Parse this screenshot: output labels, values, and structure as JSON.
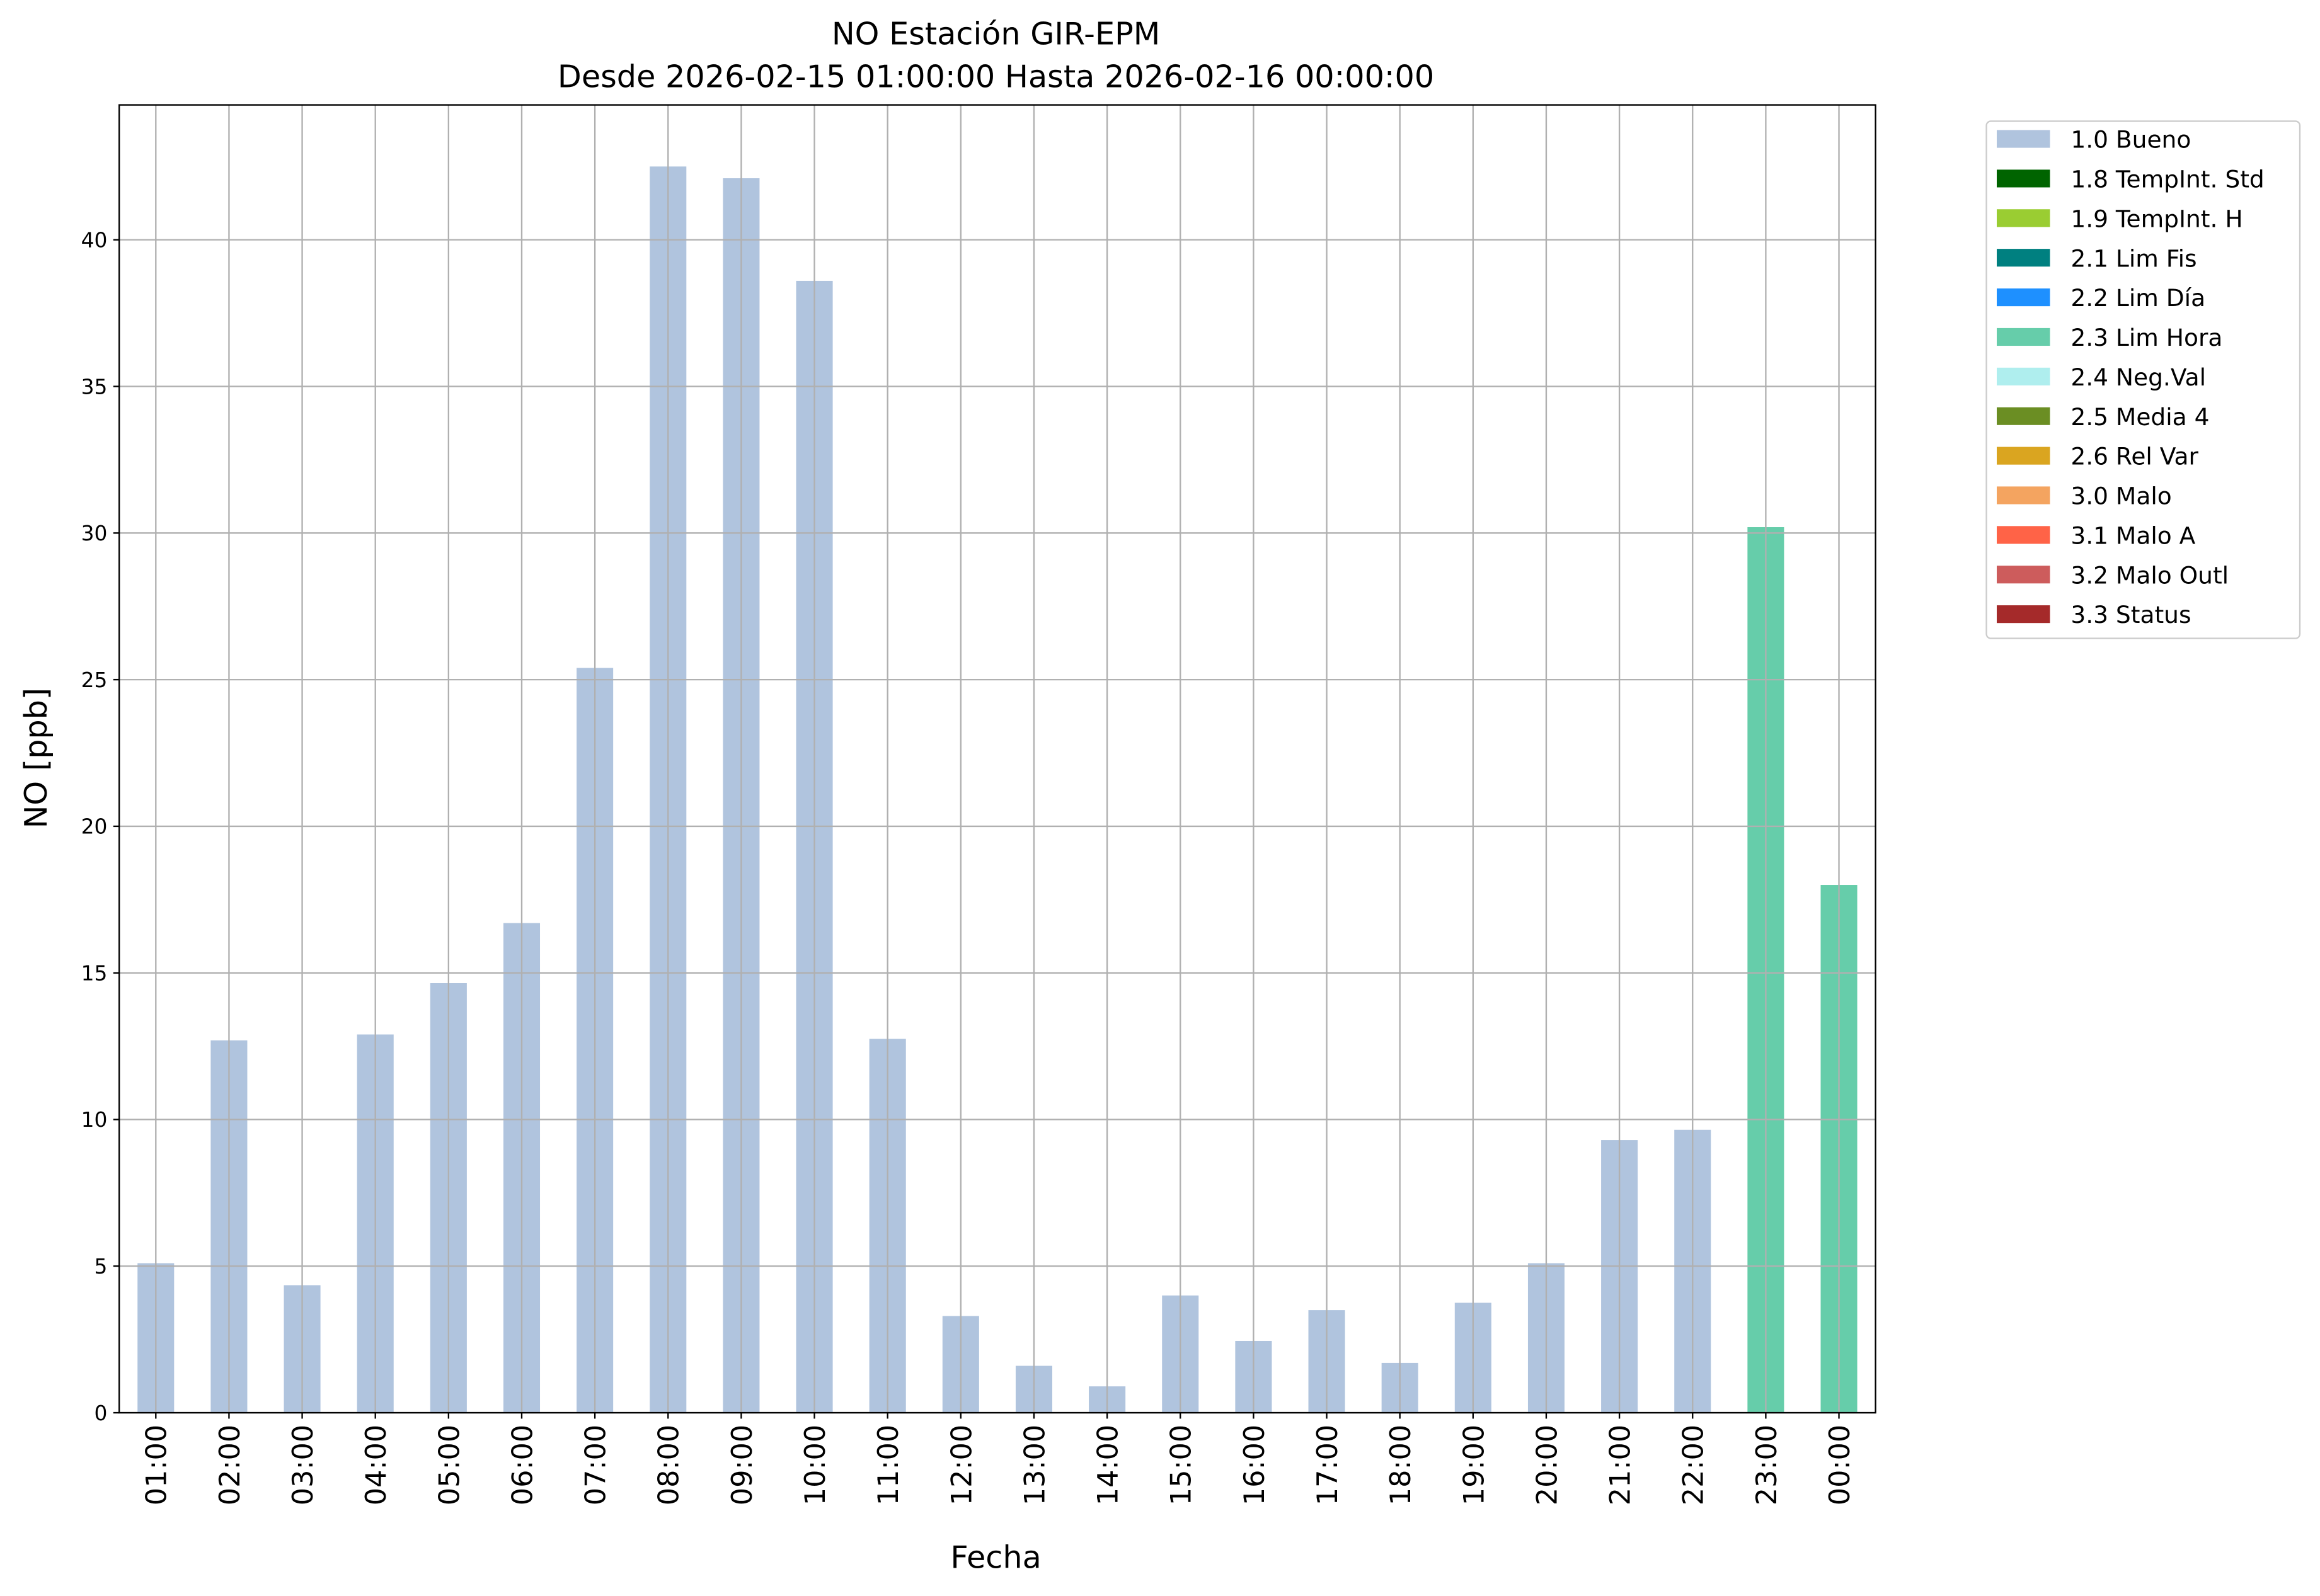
{
  "chart_data": {
    "type": "stacked_bar",
    "title": "NO Estación GIR-EPM",
    "subtitle": "Desde 2026-02-15 01:00:00 Hasta 2026-02-16 00:00:00",
    "xlabel": "Fecha",
    "ylabel": "NO [ppb]",
    "categories": [
      "01:00",
      "02:00",
      "03:00",
      "04:00",
      "05:00",
      "06:00",
      "07:00",
      "08:00",
      "09:00",
      "10:00",
      "11:00",
      "12:00",
      "13:00",
      "14:00",
      "15:00",
      "16:00",
      "17:00",
      "18:00",
      "19:00",
      "20:00",
      "21:00",
      "22:00",
      "23:00",
      "00:00"
    ],
    "series": [
      {
        "name": "1.0 Bueno",
        "color": "#b0c4de",
        "values": [
          5.1,
          12.7,
          4.35,
          12.9,
          14.65,
          16.7,
          25.4,
          42.5,
          42.1,
          38.6,
          12.75,
          3.3,
          1.6,
          0.9,
          4.0,
          2.45,
          3.5,
          1.7,
          3.75,
          5.1,
          9.3,
          9.65,
          null,
          null
        ]
      },
      {
        "name": "1.8 TempInt. Std",
        "color": "#006400",
        "values": [
          null,
          null,
          null,
          null,
          null,
          null,
          null,
          null,
          null,
          null,
          null,
          null,
          null,
          null,
          null,
          null,
          null,
          null,
          null,
          null,
          null,
          null,
          null,
          null
        ]
      },
      {
        "name": "1.9 TempInt. H",
        "color": "#9acd32",
        "values": [
          null,
          null,
          null,
          null,
          null,
          null,
          null,
          null,
          null,
          null,
          null,
          null,
          null,
          null,
          null,
          null,
          null,
          null,
          null,
          null,
          null,
          null,
          null,
          null
        ]
      },
      {
        "name": "2.1 Lim Fis",
        "color": "#008080",
        "values": [
          null,
          null,
          null,
          null,
          null,
          null,
          null,
          null,
          null,
          null,
          null,
          null,
          null,
          null,
          null,
          null,
          null,
          null,
          null,
          null,
          null,
          null,
          null,
          null
        ]
      },
      {
        "name": "2.2 Lim Día",
        "color": "#1e90ff",
        "values": [
          null,
          null,
          null,
          null,
          null,
          null,
          null,
          null,
          null,
          null,
          null,
          null,
          null,
          null,
          null,
          null,
          null,
          null,
          null,
          null,
          null,
          null,
          null,
          null
        ]
      },
      {
        "name": "2.3 Lim Hora",
        "color": "#66cdaa",
        "values": [
          null,
          null,
          null,
          null,
          null,
          null,
          null,
          null,
          null,
          null,
          null,
          null,
          null,
          null,
          null,
          null,
          null,
          null,
          null,
          null,
          null,
          null,
          30.2,
          18.0
        ]
      },
      {
        "name": "2.4 Neg.Val",
        "color": "#afeeee",
        "values": [
          null,
          null,
          null,
          null,
          null,
          null,
          null,
          null,
          null,
          null,
          null,
          null,
          null,
          null,
          null,
          null,
          null,
          null,
          null,
          null,
          null,
          null,
          null,
          null
        ]
      },
      {
        "name": "2.5 Media 4",
        "color": "#6b8e23",
        "values": [
          null,
          null,
          null,
          null,
          null,
          null,
          null,
          null,
          null,
          null,
          null,
          null,
          null,
          null,
          null,
          null,
          null,
          null,
          null,
          null,
          null,
          null,
          null,
          null
        ]
      },
      {
        "name": "2.6 Rel Var",
        "color": "#daa520",
        "values": [
          null,
          null,
          null,
          null,
          null,
          null,
          null,
          null,
          null,
          null,
          null,
          null,
          null,
          null,
          null,
          null,
          null,
          null,
          null,
          null,
          null,
          null,
          null,
          null
        ]
      },
      {
        "name": "3.0 Malo",
        "color": "#f4a460",
        "values": [
          null,
          null,
          null,
          null,
          null,
          null,
          null,
          null,
          null,
          null,
          null,
          null,
          null,
          null,
          null,
          null,
          null,
          null,
          null,
          null,
          null,
          null,
          null,
          null
        ]
      },
      {
        "name": "3.1 Malo A",
        "color": "#ff6347",
        "values": [
          null,
          null,
          null,
          null,
          null,
          null,
          null,
          null,
          null,
          null,
          null,
          null,
          null,
          null,
          null,
          null,
          null,
          null,
          null,
          null,
          null,
          null,
          null,
          null
        ]
      },
      {
        "name": "3.2 Malo Outl",
        "color": "#cd5c5c",
        "values": [
          null,
          null,
          null,
          null,
          null,
          null,
          null,
          null,
          null,
          null,
          null,
          null,
          null,
          null,
          null,
          null,
          null,
          null,
          null,
          null,
          null,
          null,
          null,
          null
        ]
      },
      {
        "name": "3.3 Status",
        "color": "#a52a2a",
        "values": [
          null,
          null,
          null,
          null,
          null,
          null,
          null,
          null,
          null,
          null,
          null,
          null,
          null,
          null,
          null,
          null,
          null,
          null,
          null,
          null,
          null,
          null,
          null,
          null
        ]
      }
    ],
    "ylim": [
      0,
      44.6
    ],
    "yticks": [
      0,
      5,
      10,
      15,
      20,
      25,
      30,
      35,
      40
    ],
    "grid": true
  }
}
